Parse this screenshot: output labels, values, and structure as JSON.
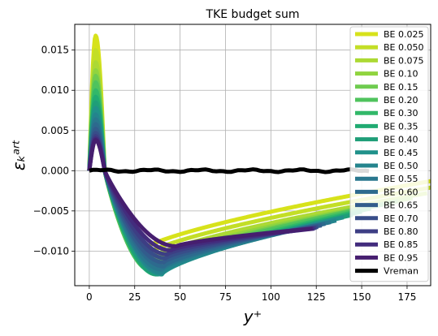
{
  "chart_data": {
    "type": "line",
    "title": "TKE budget sum",
    "xlabel": "y⁺",
    "ylabel": "εₖᵃʳᵗ",
    "xlim": [
      -8,
      188
    ],
    "ylim": [
      -0.0143,
      0.0182
    ],
    "xticks": [
      0,
      25,
      50,
      75,
      100,
      125,
      150,
      175
    ],
    "yticks": [
      -0.01,
      -0.005,
      0.0,
      0.005,
      0.01,
      0.015
    ],
    "ytick_labels": [
      "−0.010",
      "−0.005",
      "0.000",
      "0.005",
      "0.010",
      "0.015"
    ],
    "grid": true,
    "legend_position": "right",
    "series": [
      {
        "name": "BE 0.025",
        "color": "#d7e21b",
        "peak": 0.0168,
        "min": -0.01,
        "xmin": 28,
        "xend": 188,
        "yend": -0.0013
      },
      {
        "name": "BE 0.050",
        "color": "#c3de27",
        "peak": 0.015,
        "min": -0.0106,
        "xmin": 30,
        "xend": 188,
        "yend": -0.0021
      },
      {
        "name": "BE 0.075",
        "color": "#acd934",
        "peak": 0.0135,
        "min": -0.0112,
        "xmin": 31,
        "xend": 186,
        "yend": -0.0028
      },
      {
        "name": "BE 0.10",
        "color": "#90d43f",
        "peak": 0.0125,
        "min": -0.0117,
        "xmin": 32,
        "xend": 178,
        "yend": -0.0034
      },
      {
        "name": "BE 0.15",
        "color": "#6ecb4f",
        "peak": 0.0118,
        "min": -0.0121,
        "xmin": 33,
        "xend": 170,
        "yend": -0.0038
      },
      {
        "name": "BE 0.20",
        "color": "#4fc35d",
        "peak": 0.011,
        "min": -0.0124,
        "xmin": 34,
        "xend": 162,
        "yend": -0.0042
      },
      {
        "name": "BE 0.30",
        "color": "#32b869",
        "peak": 0.01,
        "min": -0.0127,
        "xmin": 36,
        "xend": 155,
        "yend": -0.0047
      },
      {
        "name": "BE 0.35",
        "color": "#21ab72",
        "peak": 0.0092,
        "min": -0.0129,
        "xmin": 37,
        "xend": 150,
        "yend": -0.0051
      },
      {
        "name": "BE 0.40",
        "color": "#1f9e78",
        "peak": 0.0085,
        "min": -0.0129,
        "xmin": 38,
        "xend": 145,
        "yend": -0.0055
      },
      {
        "name": "BE 0.45",
        "color": "#20918a",
        "peak": 0.0078,
        "min": -0.0129,
        "xmin": 40,
        "xend": 140,
        "yend": -0.0058
      },
      {
        "name": "BE 0.50",
        "color": "#24848d",
        "peak": 0.007,
        "min": -0.0127,
        "xmin": 40,
        "xend": 136,
        "yend": -0.0062
      },
      {
        "name": "BE 0.55",
        "color": "#29778e",
        "peak": 0.0064,
        "min": -0.0123,
        "xmin": 40,
        "xend": 133,
        "yend": -0.0064
      },
      {
        "name": "BE 0.60",
        "color": "#2d6a8e",
        "peak": 0.0058,
        "min": -0.0119,
        "xmin": 41,
        "xend": 130,
        "yend": -0.0066
      },
      {
        "name": "BE 0.65",
        "color": "#325c8c",
        "peak": 0.0052,
        "min": -0.0114,
        "xmin": 41,
        "xend": 128,
        "yend": -0.0068
      },
      {
        "name": "BE 0.70",
        "color": "#384d89",
        "peak": 0.0047,
        "min": -0.0109,
        "xmin": 42,
        "xend": 126,
        "yend": -0.007
      },
      {
        "name": "BE 0.80",
        "color": "#3d3e84",
        "peak": 0.0043,
        "min": -0.0104,
        "xmin": 43,
        "xend": 125,
        "yend": -0.0071
      },
      {
        "name": "BE 0.85",
        "color": "#432c7d",
        "peak": 0.004,
        "min": -0.0099,
        "xmin": 45,
        "xend": 124,
        "yend": -0.0072
      },
      {
        "name": "BE 0.95",
        "color": "#461e6f",
        "peak": 0.0038,
        "min": -0.0094,
        "xmin": 48,
        "xend": 123,
        "yend": -0.0072
      },
      {
        "name": "Vreman",
        "color": "#000000",
        "flat": true,
        "xend": 155,
        "yend": 0.0
      }
    ]
  }
}
